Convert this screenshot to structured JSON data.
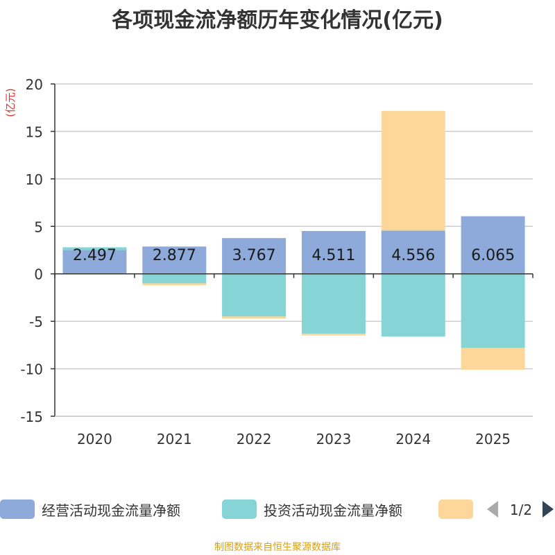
{
  "title": "各项现金流净额历年变化情况(亿元)",
  "footer": "制图数据来自恒生聚源数据库",
  "legend": {
    "items": [
      {
        "label": "经营活动现金流量净额",
        "color": "#8eaadb"
      },
      {
        "label": "投资活动现金流量净额",
        "color": "#86d4d6"
      },
      {
        "label": "",
        "color": "#fdd699"
      }
    ],
    "pager": "1/2"
  },
  "chart_data": {
    "type": "bar",
    "stacked": true,
    "categories": [
      "2020",
      "2021",
      "2022",
      "2023",
      "2024",
      "2025"
    ],
    "series": [
      {
        "name": "经营活动现金流量净额",
        "color": "#8eaadb",
        "values": [
          2.497,
          2.877,
          3.767,
          4.511,
          4.556,
          6.065
        ]
      },
      {
        "name": "投资活动现金流量净额",
        "color": "#86d4d6",
        "values": [
          0.3,
          -1.0,
          -4.5,
          -6.3,
          -6.6,
          -7.8
        ]
      },
      {
        "name": "",
        "color": "#fdd699",
        "values": [
          0.0,
          -0.2,
          -0.2,
          -0.2,
          12.6,
          -2.3
        ]
      }
    ],
    "data_labels": [
      "2.497",
      "2.877",
      "3.767",
      "4.511",
      "4.556",
      "6.065"
    ],
    "ylabel": "(亿元)",
    "ylim": [
      -15,
      20
    ],
    "yticks": [
      20,
      15,
      10,
      5,
      0,
      -5,
      -10,
      -15
    ],
    "grid": true
  }
}
